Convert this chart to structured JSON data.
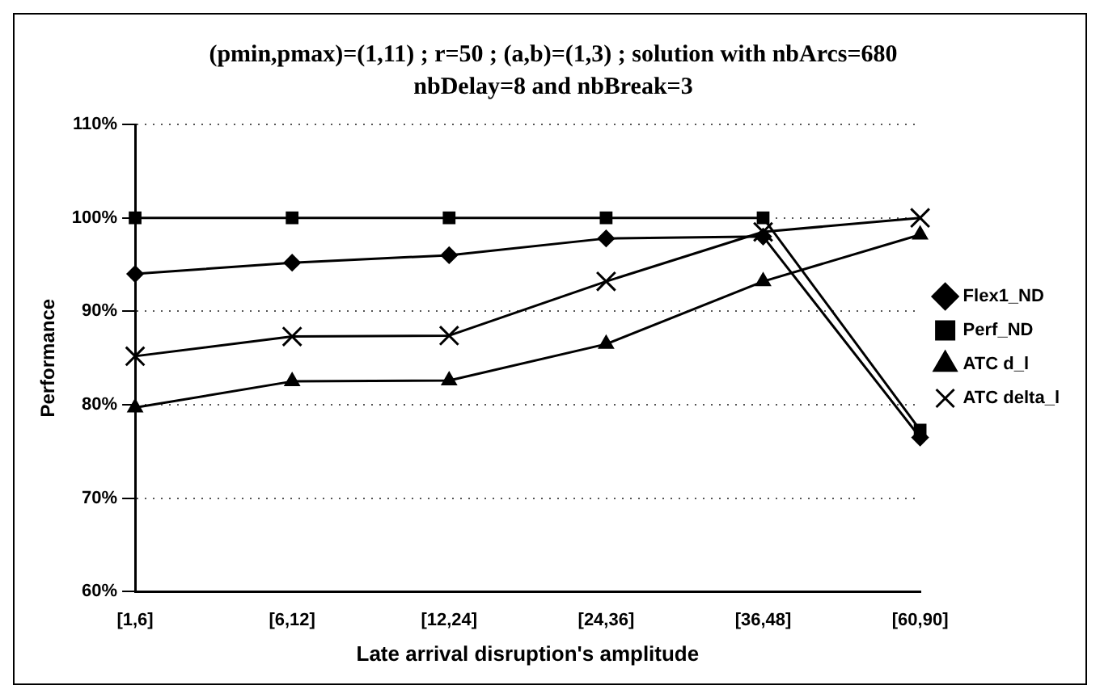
{
  "chart_data": {
    "type": "line",
    "title": "(pmin,pmax)=(1,11) ; r=50 ; (a,b)=(1,3) ; solution with nbArcs=680",
    "subtitle": "nbDelay=8 and nbBreak=3",
    "xlabel": "Late arrival disruption's amplitude",
    "ylabel": "Performance",
    "categories": [
      "[1,6]",
      "[6,12]",
      "[12,24]",
      "[24,36]",
      "[36,48]",
      "[60,90]"
    ],
    "series": [
      {
        "name": "Flex1_ND",
        "color": "#000000",
        "marker": "diamond",
        "values": [
          94,
          95.2,
          96,
          97.8,
          98,
          76.5
        ]
      },
      {
        "name": "Perf_ND",
        "color": "#000000",
        "marker": "square",
        "values": [
          100,
          100,
          100,
          100,
          100,
          77.3
        ]
      },
      {
        "name": "ATC d_l",
        "color": "#000000",
        "marker": "triangle",
        "values": [
          79.7,
          82.5,
          82.6,
          86.5,
          93.2,
          98.2
        ]
      },
      {
        "name": "ATC delta_l",
        "color": "#000000",
        "marker": "cross",
        "values": [
          85.2,
          87.3,
          87.4,
          93.2,
          98.5,
          100
        ]
      }
    ],
    "ylim": [
      60,
      110
    ],
    "yticks": [
      {
        "value": 60,
        "label": "60%"
      },
      {
        "value": 70,
        "label": "70%"
      },
      {
        "value": 80,
        "label": "80%"
      },
      {
        "value": 90,
        "label": "90%"
      },
      {
        "value": 100,
        "label": "100%"
      },
      {
        "value": 110,
        "label": "110%"
      }
    ],
    "grid": "y",
    "legend": "right",
    "line_style": "solid"
  }
}
